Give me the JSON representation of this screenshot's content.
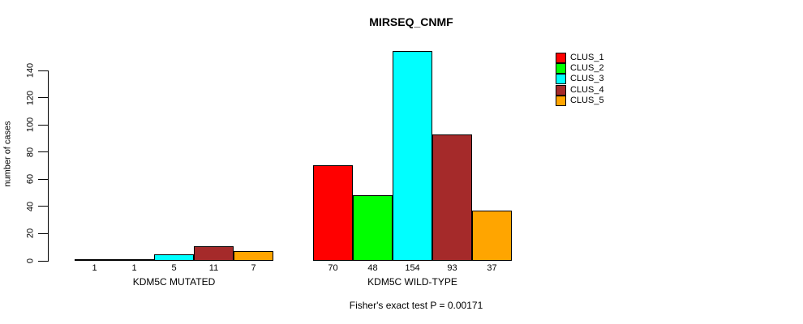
{
  "title": "MIRSEQ_CNMF",
  "chart_data": {
    "type": "bar",
    "title": "MIRSEQ_CNMF",
    "ylabel": "number of cases",
    "xlabel": "",
    "ylim": [
      0,
      154
    ],
    "yticks": [
      0,
      20,
      40,
      60,
      80,
      100,
      120,
      140
    ],
    "grid": false,
    "legend_position": "top-right",
    "series_names": [
      "CLUS_1",
      "CLUS_2",
      "CLUS_3",
      "CLUS_4",
      "CLUS_5"
    ],
    "colors": [
      "#FF0000",
      "#00FF00",
      "#00FFFF",
      "#A52A2A",
      "#FFA500"
    ],
    "groups": [
      {
        "label": "KDM5C MUTATED",
        "values": [
          1,
          1,
          5,
          11,
          7
        ]
      },
      {
        "label": "KDM5C WILD-TYPE",
        "values": [
          70,
          48,
          154,
          93,
          37
        ]
      }
    ],
    "bar_value_labels_shown": true,
    "annotation": "Fisher's exact test P = 0.00171"
  }
}
